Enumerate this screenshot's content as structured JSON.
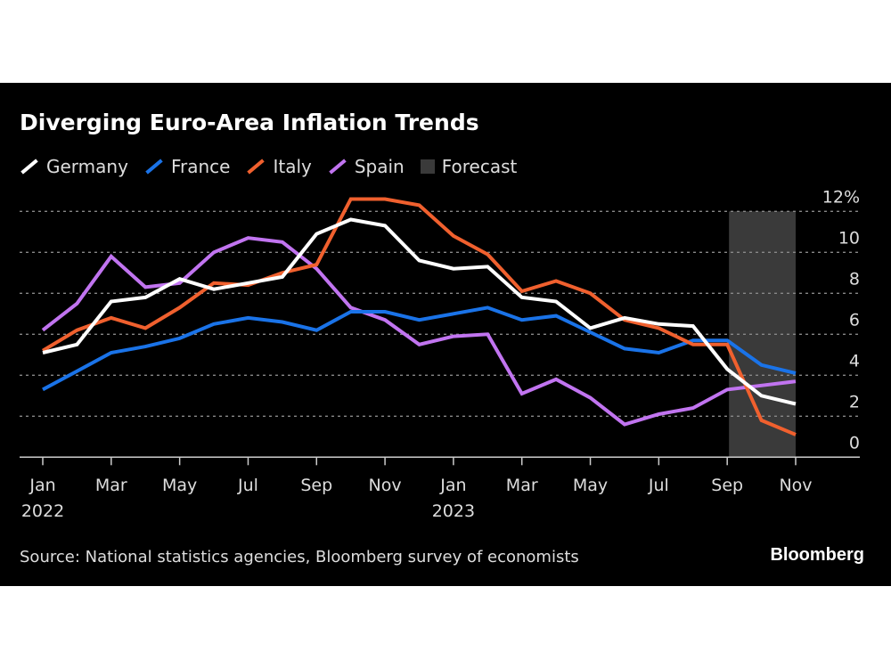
{
  "title": "Diverging Euro-Area Inflation Trends",
  "source": "Source: National statistics agencies, Bloomberg survey of economists",
  "logo": "Bloomberg",
  "legend": [
    {
      "label": "Germany",
      "color": "#ffffff"
    },
    {
      "label": "France",
      "color": "#1a73e8"
    },
    {
      "label": "Italy",
      "color": "#f0602e"
    },
    {
      "label": "Spain",
      "color": "#c174f0"
    },
    {
      "label": "Forecast",
      "color": "#3a3a3a"
    }
  ],
  "chart_data": {
    "type": "line",
    "x": [
      "2022-01",
      "2022-02",
      "2022-03",
      "2022-04",
      "2022-05",
      "2022-06",
      "2022-07",
      "2022-08",
      "2022-09",
      "2022-10",
      "2022-11",
      "2022-12",
      "2023-01",
      "2023-02",
      "2023-03",
      "2023-04",
      "2023-05",
      "2023-06",
      "2023-07",
      "2023-08",
      "2023-09",
      "2023-10",
      "2023-11"
    ],
    "x_tick_labels": [
      [
        "Jan",
        "2022"
      ],
      [
        "Mar",
        ""
      ],
      [
        "May",
        ""
      ],
      [
        "Jul",
        ""
      ],
      [
        "Sep",
        ""
      ],
      [
        "Nov",
        ""
      ],
      [
        "Jan",
        "2023"
      ],
      [
        "Mar",
        ""
      ],
      [
        "May",
        ""
      ],
      [
        "Jul",
        ""
      ],
      [
        "Sep",
        ""
      ],
      [
        "Nov",
        ""
      ]
    ],
    "y_ticks": [
      "0",
      "2",
      "4",
      "6",
      "8",
      "10",
      "12%"
    ],
    "ylim": [
      0,
      12
    ],
    "grid": true,
    "forecast_range": [
      "2023-10",
      "2023-11"
    ],
    "series": [
      {
        "name": "Germany",
        "color": "#ffffff",
        "values": [
          5.1,
          5.5,
          7.6,
          7.8,
          8.7,
          8.2,
          8.5,
          8.8,
          10.9,
          11.6,
          11.3,
          9.6,
          9.2,
          9.3,
          7.8,
          7.6,
          6.3,
          6.8,
          6.5,
          6.4,
          4.3,
          3.0,
          2.6
        ]
      },
      {
        "name": "France",
        "color": "#1a73e8",
        "values": [
          3.3,
          4.2,
          5.1,
          5.4,
          5.8,
          6.5,
          6.8,
          6.6,
          6.2,
          7.1,
          7.1,
          6.7,
          7.0,
          7.3,
          6.7,
          6.9,
          6.1,
          5.3,
          5.1,
          5.7,
          5.7,
          4.5,
          4.1
        ]
      },
      {
        "name": "Italy",
        "color": "#f0602e",
        "values": [
          5.2,
          6.2,
          6.8,
          6.3,
          7.3,
          8.5,
          8.4,
          9.0,
          9.4,
          12.6,
          12.6,
          12.3,
          10.8,
          9.9,
          8.1,
          8.6,
          8.0,
          6.7,
          6.3,
          5.5,
          5.5,
          1.8,
          1.1
        ]
      },
      {
        "name": "Spain",
        "color": "#c174f0",
        "values": [
          6.2,
          7.5,
          9.8,
          8.3,
          8.5,
          10.0,
          10.7,
          10.5,
          9.2,
          7.3,
          6.7,
          5.5,
          5.9,
          6.0,
          3.1,
          3.8,
          2.9,
          1.6,
          2.1,
          2.4,
          3.3,
          3.5,
          3.7
        ]
      }
    ]
  }
}
